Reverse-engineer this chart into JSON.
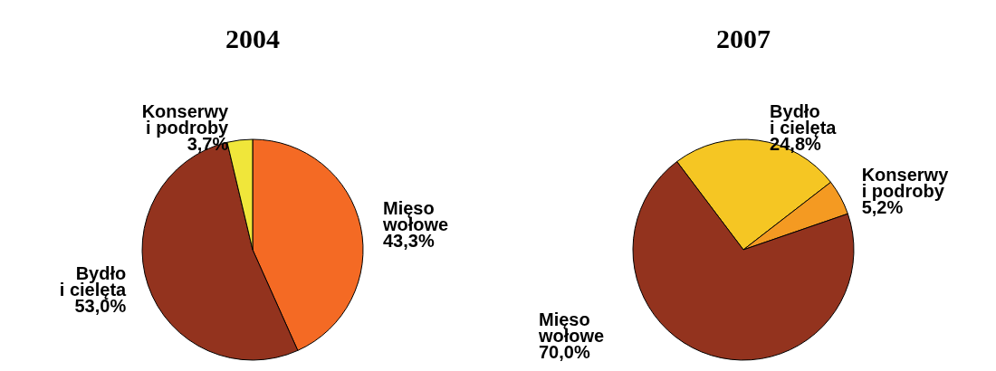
{
  "chart_data": [
    {
      "type": "pie",
      "title": "2004",
      "categories": [
        "Mięso wołowe",
        "Bydło i cielęta",
        "Konserwy i podroby"
      ],
      "values": [
        43.3,
        53.0,
        3.7
      ],
      "colors": [
        "#f46a24",
        "#93331e",
        "#f0e63a"
      ],
      "value_labels": [
        "43,3%",
        "53,0%",
        "3,7%"
      ]
    },
    {
      "type": "pie",
      "title": "2007",
      "categories": [
        "Bydło i cielęta",
        "Konserwy i podroby",
        "Mięso wołowe"
      ],
      "values": [
        24.8,
        5.2,
        70.0
      ],
      "colors": [
        "#f5c623",
        "#f49a22",
        "#93331e"
      ],
      "value_labels": [
        "24,8%",
        "5,2%",
        "70,0%"
      ]
    }
  ]
}
